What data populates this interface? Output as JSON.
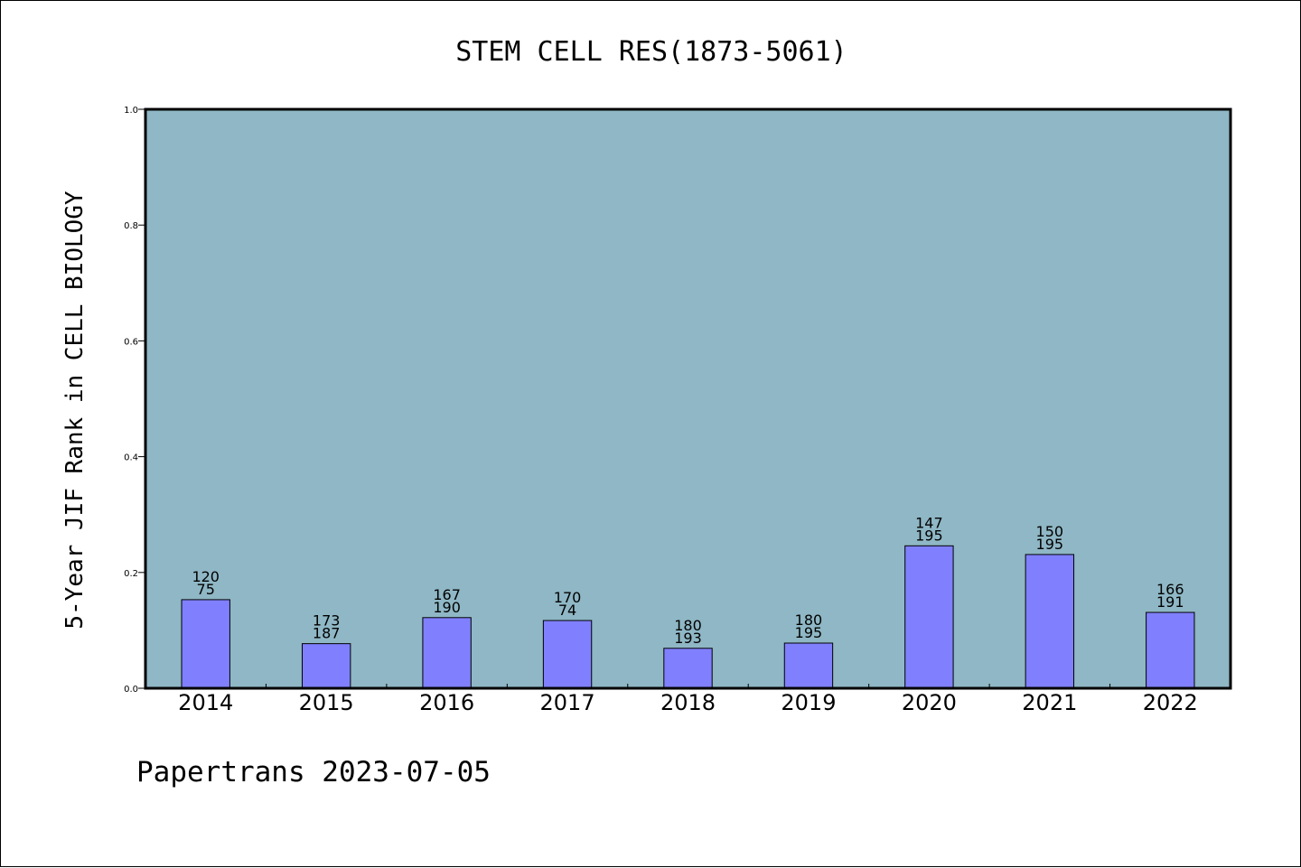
{
  "footer": {
    "text": "Papertrans 2023-07-05"
  },
  "colors": {
    "plot_background": "#8fb7c5",
    "bar_fill": "#8080ff",
    "bar_stroke": "#000000",
    "axis": "#000000"
  },
  "chart_data": {
    "type": "bar",
    "title": "STEM CELL RES(1873-5061)",
    "xlabel": "",
    "ylabel": "5-Year JIF Rank in CELL BIOLOGY",
    "categories": [
      "2014",
      "2015",
      "2016",
      "2017",
      "2018",
      "2019",
      "2020",
      "2021",
      "2022"
    ],
    "values": [
      0.153,
      0.077,
      0.122,
      0.117,
      0.069,
      0.078,
      0.246,
      0.231,
      0.131
    ],
    "labels_top": [
      "120",
      "173",
      "167",
      "170",
      "180",
      "180",
      "147",
      "150",
      "166"
    ],
    "labels_bottom": [
      "75",
      "187",
      "190",
      "74",
      "193",
      "195",
      "195",
      "195",
      "191"
    ],
    "ylim": [
      0,
      1.0
    ],
    "yticks": [
      0.0,
      0.2,
      0.4,
      0.6,
      0.8,
      1.0
    ],
    "ytick_labels": [
      "0.0",
      "0.2",
      "0.4",
      "0.6",
      "0.8",
      "1.0"
    ],
    "grid": false,
    "legend": "none"
  }
}
